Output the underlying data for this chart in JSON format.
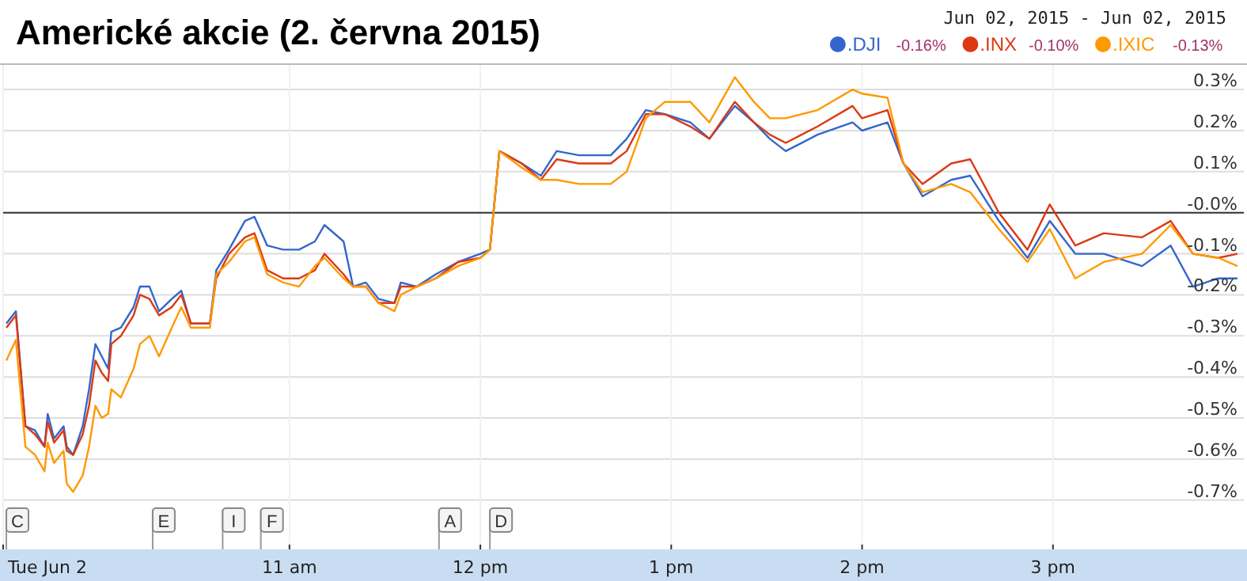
{
  "chart_data": {
    "type": "line",
    "title": "Americké akcie (2. června 2015)",
    "x": [
      "2015-06-02T09:31",
      "2015-06-02T09:34",
      "2015-06-02T09:37",
      "2015-06-02T09:40",
      "2015-06-02T09:43",
      "2015-06-02T09:44",
      "2015-06-02T09:46",
      "2015-06-02T09:49",
      "2015-06-02T09:50",
      "2015-06-02T09:52",
      "2015-06-02T09:55",
      "2015-06-02T09:57",
      "2015-06-02T09:59",
      "2015-06-02T10:01",
      "2015-06-02T10:03",
      "2015-06-02T10:04",
      "2015-06-02T10:07",
      "2015-06-02T10:11",
      "2015-06-02T10:13",
      "2015-06-02T10:16",
      "2015-06-02T10:19",
      "2015-06-02T10:23",
      "2015-06-02T10:26",
      "2015-06-02T10:29",
      "2015-06-02T10:35",
      "2015-06-02T10:37",
      "2015-06-02T10:41",
      "2015-06-02T10:46",
      "2015-06-02T10:49",
      "2015-06-02T10:53",
      "2015-06-02T10:58",
      "2015-06-02T11:03",
      "2015-06-02T11:08",
      "2015-06-02T11:11",
      "2015-06-02T11:17",
      "2015-06-02T11:20",
      "2015-06-02T11:24",
      "2015-06-02T11:28",
      "2015-06-02T11:33",
      "2015-06-02T11:35",
      "2015-06-02T11:40",
      "2015-06-02T11:46",
      "2015-06-02T11:53",
      "2015-06-02T12:00",
      "2015-06-02T12:03",
      "2015-06-02T12:06",
      "2015-06-02T12:13",
      "2015-06-02T12:19",
      "2015-06-02T12:24",
      "2015-06-02T12:31",
      "2015-06-02T12:41",
      "2015-06-02T12:46",
      "2015-06-02T12:52",
      "2015-06-02T12:58",
      "2015-06-02T13:06",
      "2015-06-02T13:12",
      "2015-06-02T13:20",
      "2015-06-02T13:26",
      "2015-06-02T13:31",
      "2015-06-02T13:36",
      "2015-06-02T13:46",
      "2015-06-02T13:57",
      "2015-06-02T14:00",
      "2015-06-02T14:08",
      "2015-06-02T14:13",
      "2015-06-02T14:19",
      "2015-06-02T14:28",
      "2015-06-02T14:34",
      "2015-06-02T14:43",
      "2015-06-02T14:52",
      "2015-06-02T14:59",
      "2015-06-02T15:07",
      "2015-06-02T15:16",
      "2015-06-02T15:28",
      "2015-06-02T15:37",
      "2015-06-02T15:44",
      "2015-06-02T15:52",
      "2015-06-02T15:58"
    ],
    "series": [
      {
        "name": ".DJI",
        "color": "#3366cc",
        "values": [
          -0.27,
          -0.24,
          -0.52,
          -0.53,
          -0.57,
          -0.49,
          -0.55,
          -0.52,
          -0.57,
          -0.59,
          -0.52,
          -0.43,
          -0.32,
          -0.35,
          -0.38,
          -0.29,
          -0.28,
          -0.23,
          -0.18,
          -0.18,
          -0.24,
          -0.21,
          -0.19,
          -0.27,
          -0.27,
          -0.14,
          -0.09,
          -0.02,
          -0.01,
          -0.08,
          -0.09,
          -0.09,
          -0.07,
          -0.03,
          -0.07,
          -0.18,
          -0.17,
          -0.21,
          -0.22,
          -0.17,
          -0.18,
          -0.15,
          -0.12,
          -0.1,
          -0.09,
          0.15,
          0.12,
          0.09,
          0.15,
          0.14,
          0.14,
          0.18,
          0.25,
          0.24,
          0.22,
          0.18,
          0.26,
          0.22,
          0.18,
          0.15,
          0.19,
          0.22,
          0.2,
          0.22,
          0.12,
          0.04,
          0.08,
          0.09,
          -0.02,
          -0.11,
          -0.02,
          -0.1,
          -0.1,
          -0.13,
          -0.08,
          -0.18,
          -0.16,
          -0.16
        ]
      },
      {
        "name": ".INX",
        "color": "#dc3912",
        "values": [
          -0.28,
          -0.25,
          -0.52,
          -0.54,
          -0.57,
          -0.51,
          -0.56,
          -0.53,
          -0.58,
          -0.59,
          -0.54,
          -0.47,
          -0.36,
          -0.39,
          -0.41,
          -0.32,
          -0.3,
          -0.25,
          -0.2,
          -0.21,
          -0.25,
          -0.23,
          -0.2,
          -0.27,
          -0.27,
          -0.16,
          -0.1,
          -0.06,
          -0.05,
          -0.14,
          -0.16,
          -0.16,
          -0.14,
          -0.1,
          -0.15,
          -0.18,
          -0.18,
          -0.22,
          -0.22,
          -0.18,
          -0.18,
          -0.16,
          -0.12,
          -0.11,
          -0.09,
          0.15,
          0.12,
          0.08,
          0.13,
          0.12,
          0.12,
          0.15,
          0.24,
          0.24,
          0.21,
          0.18,
          0.27,
          0.22,
          0.19,
          0.17,
          0.21,
          0.26,
          0.23,
          0.25,
          0.12,
          0.07,
          0.12,
          0.13,
          0.0,
          -0.09,
          0.02,
          -0.08,
          -0.05,
          -0.06,
          -0.02,
          -0.1,
          -0.11,
          -0.1
        ]
      },
      {
        "name": ".IXIC",
        "color": "#ff9900",
        "values": [
          -0.36,
          -0.31,
          -0.57,
          -0.59,
          -0.63,
          -0.56,
          -0.61,
          -0.58,
          -0.66,
          -0.68,
          -0.64,
          -0.57,
          -0.47,
          -0.5,
          -0.49,
          -0.43,
          -0.45,
          -0.38,
          -0.32,
          -0.3,
          -0.35,
          -0.28,
          -0.23,
          -0.28,
          -0.28,
          -0.15,
          -0.12,
          -0.07,
          -0.06,
          -0.15,
          -0.17,
          -0.18,
          -0.13,
          -0.11,
          -0.16,
          -0.18,
          -0.18,
          -0.22,
          -0.24,
          -0.2,
          -0.18,
          -0.16,
          -0.13,
          -0.11,
          -0.09,
          0.15,
          0.11,
          0.08,
          0.08,
          0.07,
          0.07,
          0.1,
          0.23,
          0.27,
          0.27,
          0.22,
          0.33,
          0.27,
          0.23,
          0.23,
          0.25,
          0.3,
          0.29,
          0.28,
          0.12,
          0.05,
          0.07,
          0.05,
          -0.04,
          -0.12,
          -0.04,
          -0.16,
          -0.12,
          -0.1,
          -0.03,
          -0.1,
          -0.11,
          -0.13
        ]
      }
    ],
    "xlim": [
      "2015-06-02T09:30",
      "2015-06-02T16:00"
    ],
    "xticks": [
      {
        "value": "2015-06-02T09:30",
        "label": "Tue Jun 2"
      },
      {
        "value": "2015-06-02T11:00",
        "label": "11 am"
      },
      {
        "value": "2015-06-02T12:00",
        "label": "12 pm"
      },
      {
        "value": "2015-06-02T13:00",
        "label": "1 pm"
      },
      {
        "value": "2015-06-02T14:00",
        "label": "2 pm"
      },
      {
        "value": "2015-06-02T15:00",
        "label": "3 pm"
      }
    ],
    "ylim": [
      -0.82,
      0.36
    ],
    "yticks": [
      {
        "value": 0.3,
        "label": "0.3%"
      },
      {
        "value": 0.2,
        "label": "0.2%"
      },
      {
        "value": 0.1,
        "label": "0.1%"
      },
      {
        "value": 0,
        "label": "-0.0%"
      },
      {
        "value": -0.1,
        "label": "-0.1%"
      },
      {
        "value": -0.2,
        "label": "-0.2%"
      },
      {
        "value": -0.3,
        "label": "-0.3%"
      },
      {
        "value": -0.4,
        "label": "-0.4%"
      },
      {
        "value": -0.5,
        "label": "-0.5%"
      },
      {
        "value": -0.6,
        "label": "-0.6%"
      },
      {
        "value": -0.7,
        "label": "-0.7%"
      }
    ],
    "ref_lines": [
      {
        "axis": "y",
        "value": 0,
        "color": "#333333"
      },
      {
        "axis": "x",
        "value": "2015-06-02T09:31",
        "label": "C",
        "color": "#999999"
      },
      {
        "axis": "x",
        "value": "2015-06-02T10:17",
        "label": "E",
        "color": "#999999"
      },
      {
        "axis": "x",
        "value": "2015-06-02T10:39",
        "label": "I",
        "color": "#999999"
      },
      {
        "axis": "x",
        "value": "2015-06-02T10:51",
        "label": "F",
        "color": "#999999"
      },
      {
        "axis": "x",
        "value": "2015-06-02T11:47",
        "label": "A",
        "color": "#999999"
      },
      {
        "axis": "x",
        "value": "2015-06-02T12:03",
        "label": "D",
        "color": "#999999"
      }
    ],
    "grid": true,
    "legend": "top right",
    "annotations": [
      "Jun 02, 2015  -  Jun 02, 2015",
      "-0.16%",
      "-0.10%",
      "-0.13%"
    ]
  }
}
